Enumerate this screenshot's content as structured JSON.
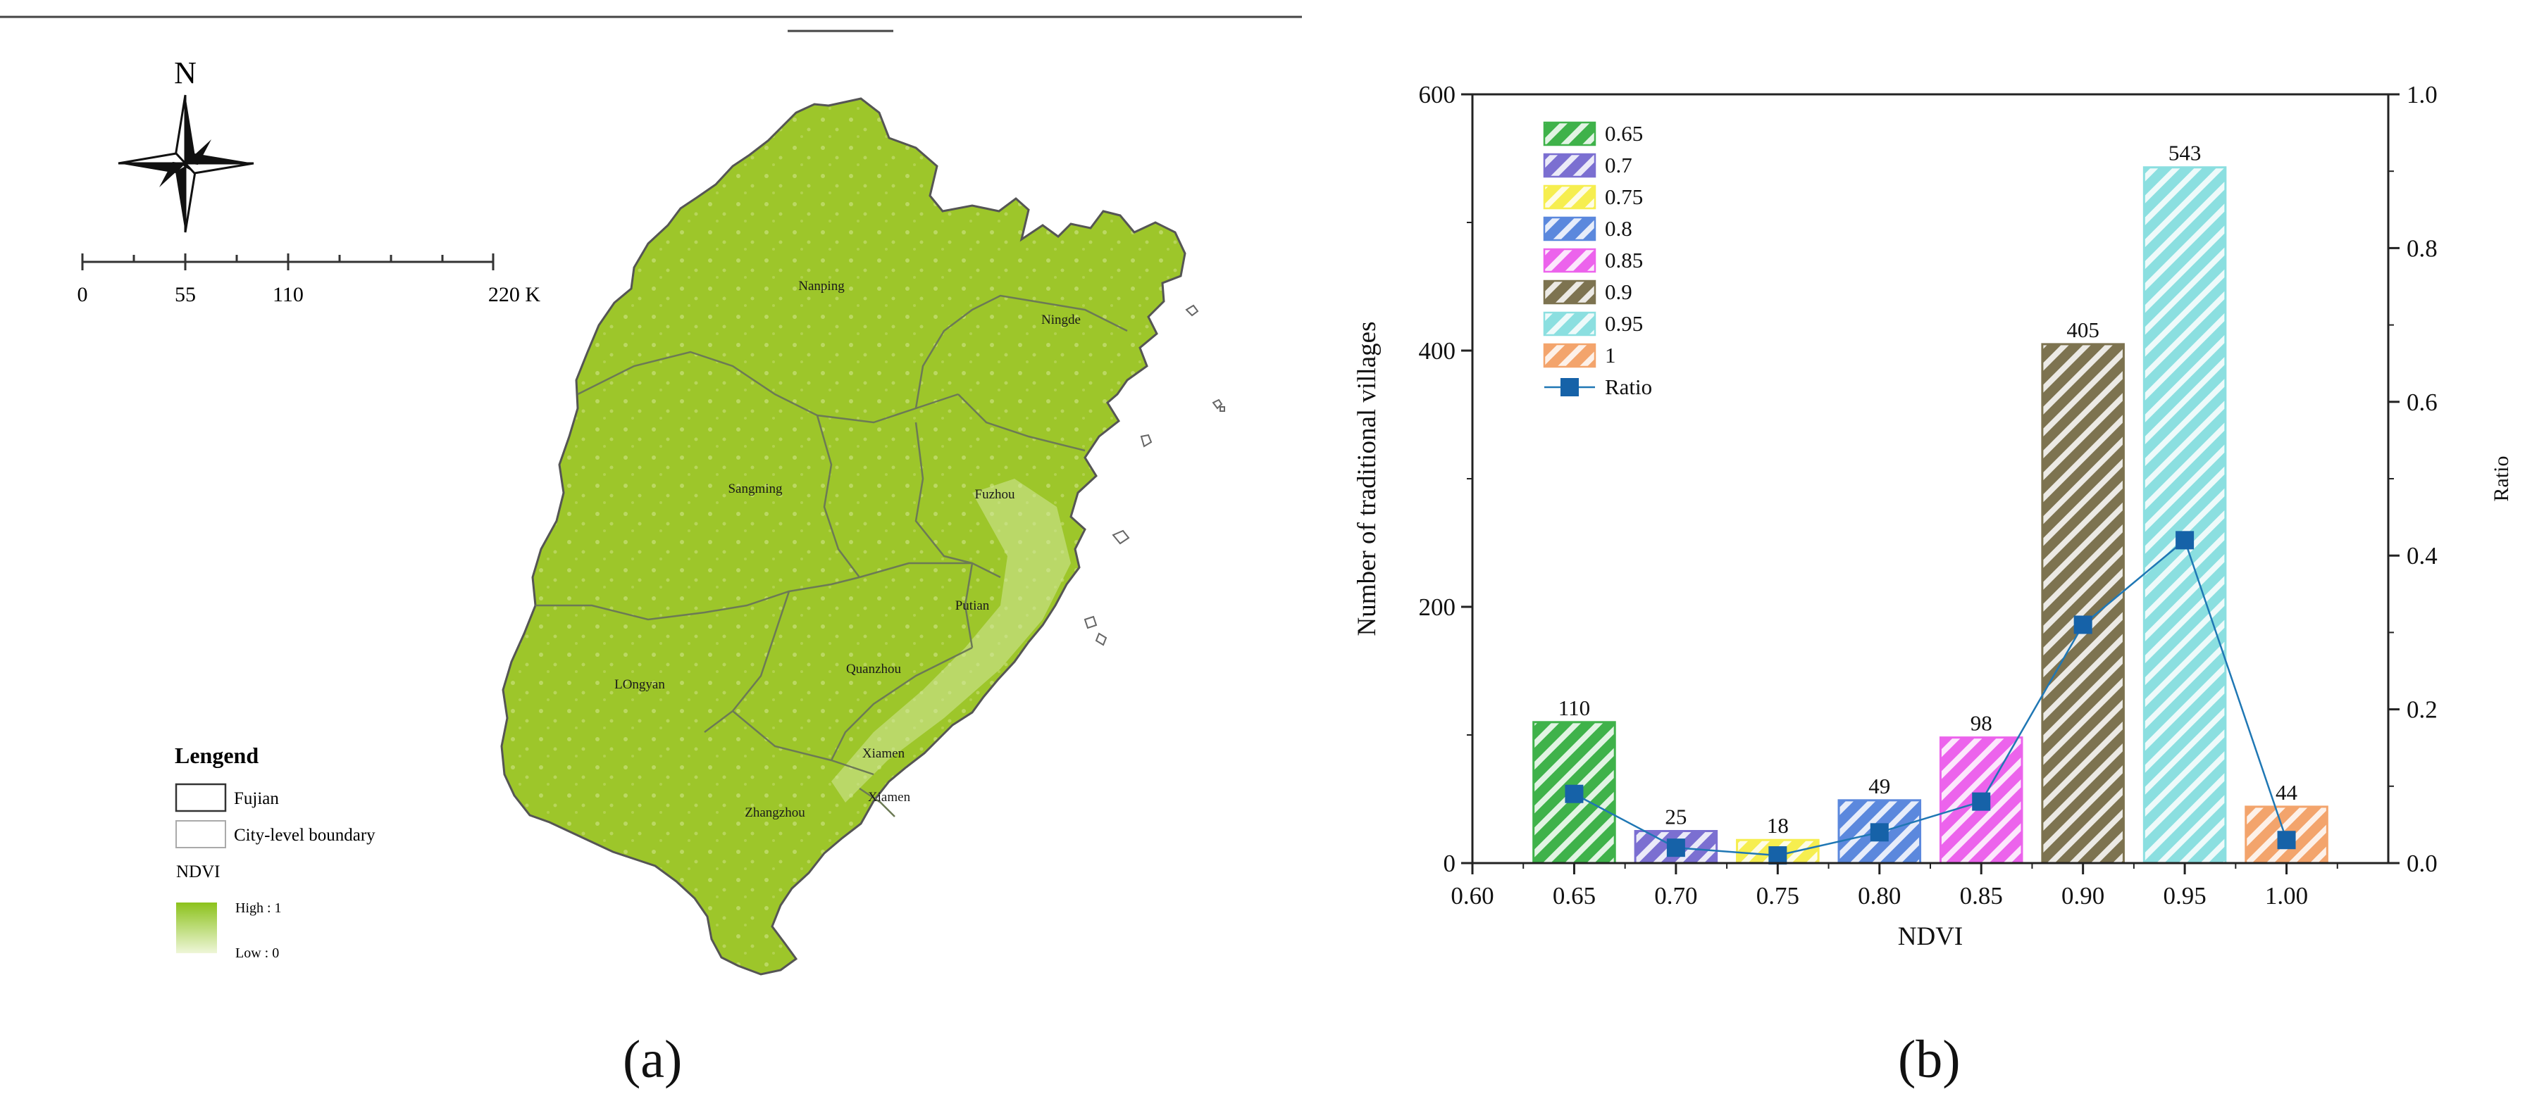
{
  "panel_a": {
    "label": "(a)",
    "north_label": "N",
    "scale_ticks": [
      "0",
      "55",
      "110",
      "220 K"
    ],
    "cities": [
      "Nanping",
      "Ningde",
      "Sangming",
      "Fuzhou",
      "Putian",
      "LOngyan",
      "Quanzhou",
      "Xiamen",
      "Xiamen",
      "Zhangzhou"
    ],
    "legend": {
      "title": "Lengend",
      "items": [
        "Fujian",
        "City-level boundary"
      ],
      "ndvi_title": "NDVI",
      "ndvi_high": "High : 1",
      "ndvi_low": "Low : 0"
    },
    "colors": {
      "land": "#9dc62a",
      "land_light": "#e7f2c8",
      "boundary": "#555555"
    }
  },
  "panel_b": {
    "label": "(b)"
  },
  "chart_data": {
    "type": "bar",
    "xlabel": "NDVI",
    "ylabel": "Number of traditional villages",
    "y2label": "Ratio",
    "xlim": [
      0.6,
      1.05
    ],
    "x_ticks": [
      "0.60",
      "0.65",
      "0.70",
      "0.75",
      "0.80",
      "0.85",
      "0.90",
      "0.95",
      "1.00"
    ],
    "ylim": [
      0,
      600
    ],
    "y_ticks": [
      "0",
      "200",
      "400",
      "600"
    ],
    "y2lim": [
      0,
      1.0
    ],
    "y2_ticks": [
      "0.0",
      "0.2",
      "0.4",
      "0.6",
      "0.8",
      "1.0"
    ],
    "categories": [
      "0.65",
      "0.7",
      "0.75",
      "0.8",
      "0.85",
      "0.9",
      "0.95",
      "1"
    ],
    "x": [
      0.65,
      0.7,
      0.75,
      0.8,
      0.85,
      0.9,
      0.95,
      1.0
    ],
    "series": [
      {
        "name": "Ratio",
        "type": "line",
        "axis": "right",
        "values": [
          0.09,
          0.02,
          0.01,
          0.04,
          0.08,
          0.31,
          0.42,
          0.03
        ]
      }
    ],
    "values": [
      110,
      25,
      18,
      49,
      98,
      405,
      543,
      44
    ],
    "bar_colors": [
      "#3fb24a",
      "#7b6fd1",
      "#f6ee4f",
      "#5b88dd",
      "#ec63ec",
      "#7d7350",
      "#8bdfe0",
      "#f3a46c"
    ],
    "line_color": "#1f77b4",
    "marker_color": "#1662a8",
    "legend_position": "top-left",
    "grid": false
  }
}
